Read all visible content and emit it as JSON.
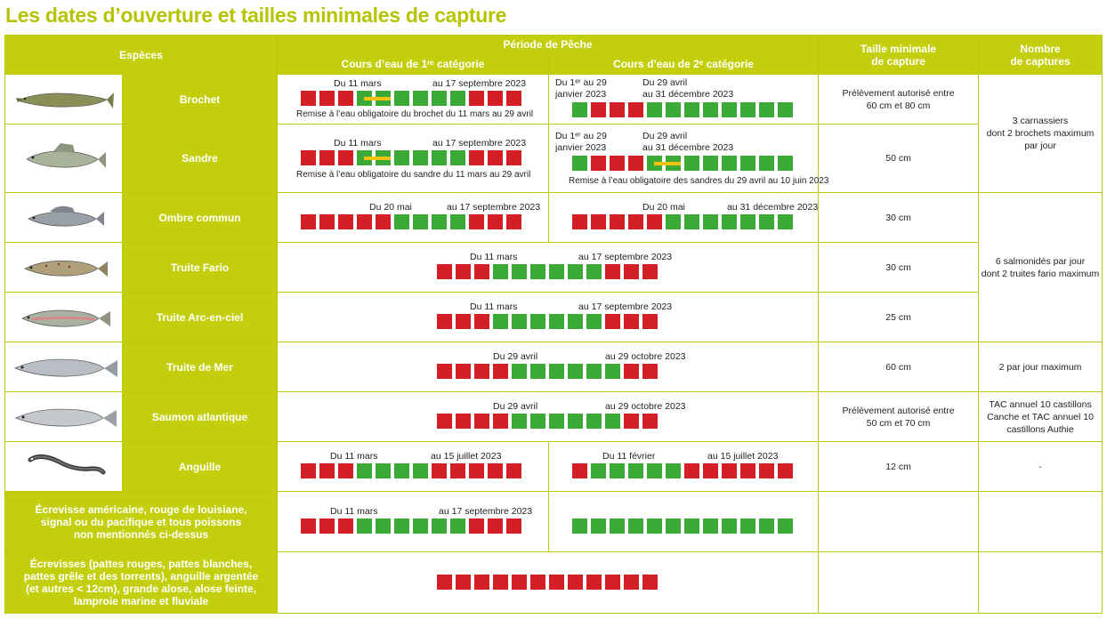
{
  "title": "Les dates d’ouverture et tailles minimales de capture",
  "headers": {
    "species": "Espèces",
    "period": "Période de Pêche",
    "cat1": "Cours d’eau de 1ʳᵉ catégorie",
    "cat2": "Cours d’eau de 2ᵉ catégorie",
    "size_line1": "Taille minimale",
    "size_line2": "de capture",
    "count_line1": "Nombre",
    "count_line2": "de captures"
  },
  "colors": {
    "accent": "#c3cf0c",
    "open": "#3aa935",
    "closed": "#d21f26",
    "split": "#f4c20d",
    "title": "#b5c300"
  },
  "rows": [
    {
      "name": "Brochet",
      "icon": "pike-icon",
      "cat1": {
        "from": "Du 11 mars",
        "to": "au 17 septembre 2023",
        "note": "Remise à l’eau obligatoire du brochet du 11 mars au 29 avril"
      },
      "cat2": {
        "from1": "Du 1ᵉʳ au 29",
        "from2": "janvier 2023",
        "mid1": "Du 29 avril",
        "mid2": "au 31 décembre 2023"
      },
      "size1": "Prélèvement autorisé entre",
      "size2": "60 cm et 80 cm"
    },
    {
      "name": "Sandre",
      "icon": "zander-icon",
      "cat1": {
        "from": "Du 11 mars",
        "to": "au 17 septembre 2023",
        "note": "Remise à l’eau obligatoire du sandre du 11 mars au 29 avril"
      },
      "cat2": {
        "from1": "Du 1ᵉʳ au 29",
        "from2": "janvier 2023",
        "mid1": "Du 29 avril",
        "mid2": "au 31 décembre 2023",
        "note": "Remise à l’eau obligatoire des sandres du 29 avril au 10 juin 2023"
      },
      "size1": "50 cm"
    },
    {
      "name": "Ombre commun",
      "icon": "grayling-icon",
      "cat1": {
        "from": "Du 20 mai",
        "to": "au 17 septembre 2023"
      },
      "cat2": {
        "from": "Du 20 mai",
        "to": "au 31 décembre 2023"
      },
      "size1": "30 cm"
    },
    {
      "name": "Truite Fario",
      "icon": "brown-trout-icon",
      "full": {
        "from": "Du 11 mars",
        "to": "au 17 septembre 2023"
      },
      "size1": "30 cm"
    },
    {
      "name": "Truite Arc-en-ciel",
      "icon": "rainbow-trout-icon",
      "full": {
        "from": "Du 11 mars",
        "to": "au 17 septembre 2023"
      },
      "size1": "25 cm"
    },
    {
      "name": "Truite de Mer",
      "icon": "sea-trout-icon",
      "full": {
        "from": "Du 29 avril",
        "to": "au 29 octobre 2023"
      },
      "size1": "60 cm",
      "count": "2 par jour maximum"
    },
    {
      "name": "Saumon atlantique",
      "icon": "salmon-icon",
      "full": {
        "from": "Du 29 avril",
        "to": "au 29 octobre 2023"
      },
      "size1": "Prélèvement autorisé entre",
      "size2": "50 cm et 70 cm",
      "count1": "TAC annuel 10 castillons",
      "count2": "Canche et TAC annuel 10",
      "count3": "castillons Authie"
    },
    {
      "name": "Anguille",
      "icon": "eel-icon",
      "cat1": {
        "from": "Du 11 mars",
        "to": "au 15 juillet 2023"
      },
      "cat2": {
        "from": "Du 11 février",
        "to": "au 15 juillet 2023"
      },
      "size1": "12 cm",
      "count": "-"
    },
    {
      "name1": "Écrevisse américaine, rouge de louisiane,",
      "name2": "signal ou du pacifique et tous poissons",
      "name3": "non mentionnés ci-dessus",
      "cat1": {
        "from": "Du 11 mars",
        "to": "au 17 septembre 2023"
      }
    },
    {
      "name1": "Écrevisses (pattes rouges, pattes blanches,",
      "name2": "pattes grêle et des torrents), anguille argentée",
      "name3": "(et autres < 12cm), grande alose, alose feinte,",
      "name4": "lamproie marine et fluviale"
    }
  ],
  "groups": {
    "carnassiers1": "3 carnassiers",
    "carnassiers2": "dont 2 brochets maximum",
    "carnassiers3": "par jour",
    "salmonides1": "6 salmonidés par jour",
    "salmonides2": "dont 2 truites fario maximum"
  },
  "bars": {
    "brochet1": "rrrggggggrrr",
    "brochet2": "grrrgggggggg",
    "sandre1": "rrrggggggrrr",
    "sandre2": "grrrgggggggg",
    "ombre1": "rrrrrggggrrr",
    "ombre2": "rrrrrggggggg",
    "fario": "rrrggggggrrr",
    "arc": "rrrggggggrrr",
    "mer": "rrrrggggggrr",
    "saumon": "rrrrggggggrr",
    "anguille1": "rrrggggrrrrr",
    "anguille2": "rgggggrrrrrr",
    "ecrevisse1": "rrrggggggrrr",
    "ecrevisse2": "gggggggggggg",
    "interdit": "rrrrrrrrrrrr"
  }
}
